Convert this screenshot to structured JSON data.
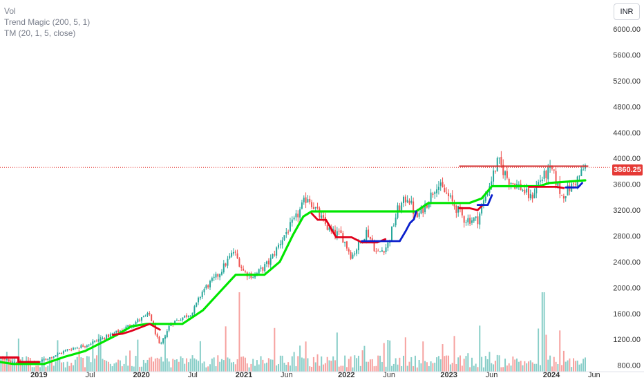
{
  "legend": [
    {
      "label": "Vol"
    },
    {
      "label": "Trend Magic (200, 5, 1)"
    },
    {
      "label": "TM (20, 1, 5, close)"
    }
  ],
  "currency": "INR",
  "last_price_label": "3860.25",
  "colors": {
    "up": "#26a69a",
    "down": "#ef5350",
    "trend_up": "#00e600",
    "trend_down": "#e0001a",
    "tm_blue": "#0a1fcc",
    "resistance": "#d32f2f",
    "price_line": "#e53935"
  },
  "chart_data": {
    "type": "candlestick",
    "y_axis": {
      "ticks": [
        800,
        1200,
        1600,
        2000,
        2400,
        2800,
        3200,
        3600,
        4000,
        4400,
        4800,
        5200,
        5600,
        6000
      ],
      "tick_labels": [
        "800.00",
        "1200.00",
        "1600.00",
        "2000.00",
        "2400.00",
        "2800.00",
        "3200.00",
        "3600.00",
        "4000.00",
        "4400.00",
        "4800.00",
        "5200.00",
        "5600.00",
        "6000.00"
      ],
      "range": [
        700,
        6450
      ]
    },
    "x_axis": {
      "labels": [
        {
          "t": 2019.0,
          "text": "2019",
          "year": true
        },
        {
          "t": 2019.5,
          "text": "Jul",
          "year": false
        },
        {
          "t": 2020.0,
          "text": "2020",
          "year": true
        },
        {
          "t": 2020.5,
          "text": "Jul",
          "year": false
        },
        {
          "t": 2021.0,
          "text": "2021",
          "year": true
        },
        {
          "t": 2021.417,
          "text": "Jun",
          "year": false
        },
        {
          "t": 2022.0,
          "text": "2022",
          "year": true
        },
        {
          "t": 2022.417,
          "text": "Jun",
          "year": false
        },
        {
          "t": 2023.0,
          "text": "2023",
          "year": true
        },
        {
          "t": 2023.417,
          "text": "Jun",
          "year": false
        },
        {
          "t": 2024.0,
          "text": "2024",
          "year": true
        },
        {
          "t": 2024.417,
          "text": "Jun",
          "year": false
        }
      ],
      "range": [
        2018.62,
        2024.58
      ]
    },
    "price_path": [
      [
        2018.62,
        900
      ],
      [
        2018.8,
        840
      ],
      [
        2019.0,
        850
      ],
      [
        2019.15,
        950
      ],
      [
        2019.3,
        1050
      ],
      [
        2019.45,
        1110
      ],
      [
        2019.6,
        1200
      ],
      [
        2019.8,
        1340
      ],
      [
        2020.0,
        1520
      ],
      [
        2020.08,
        1590
      ],
      [
        2020.18,
        1080
      ],
      [
        2020.28,
        1440
      ],
      [
        2020.5,
        1620
      ],
      [
        2020.6,
        1960
      ],
      [
        2020.75,
        2200
      ],
      [
        2020.9,
        2560
      ],
      [
        2021.0,
        2240
      ],
      [
        2021.1,
        2180
      ],
      [
        2021.25,
        2400
      ],
      [
        2021.4,
        2830
      ],
      [
        2021.5,
        3050
      ],
      [
        2021.62,
        3420
      ],
      [
        2021.75,
        3080
      ],
      [
        2021.85,
        2850
      ],
      [
        2021.95,
        2820
      ],
      [
        2022.05,
        2480
      ],
      [
        2022.2,
        2880
      ],
      [
        2022.3,
        2520
      ],
      [
        2022.4,
        2650
      ],
      [
        2022.5,
        3200
      ],
      [
        2022.6,
        3420
      ],
      [
        2022.68,
        3070
      ],
      [
        2022.8,
        3350
      ],
      [
        2022.88,
        3610
      ],
      [
        2022.98,
        3440
      ],
      [
        2023.05,
        3280
      ],
      [
        2023.15,
        3060
      ],
      [
        2023.28,
        3050
      ],
      [
        2023.38,
        3520
      ],
      [
        2023.48,
        3960
      ],
      [
        2023.58,
        3670
      ],
      [
        2023.7,
        3550
      ],
      [
        2023.8,
        3380
      ],
      [
        2023.88,
        3650
      ],
      [
        2024.0,
        3830
      ],
      [
        2024.1,
        3420
      ],
      [
        2024.2,
        3570
      ],
      [
        2024.28,
        3740
      ],
      [
        2024.33,
        3870
      ]
    ],
    "volume_spikes": [
      [
        2020.95,
        1.0
      ],
      [
        2023.92,
        1.0
      ],
      [
        2021.3,
        0.55
      ],
      [
        2023.05,
        0.45
      ],
      [
        2023.3,
        0.58
      ],
      [
        2022.4,
        0.4
      ],
      [
        2021.6,
        0.38
      ]
    ],
    "trend_magic_200": [
      {
        "color": "trend_down",
        "points": [
          [
            2018.62,
            920
          ],
          [
            2018.8,
            920
          ],
          [
            2018.8,
            850
          ],
          [
            2019.0,
            850
          ]
        ]
      },
      {
        "color": "trend_up",
        "points": [
          [
            2018.62,
            850
          ],
          [
            2018.75,
            820
          ],
          [
            2019.05,
            820
          ],
          [
            2019.25,
            930
          ],
          [
            2019.45,
            1020
          ],
          [
            2019.6,
            1140
          ],
          [
            2019.75,
            1260
          ],
          [
            2019.9,
            1400
          ],
          [
            2020.05,
            1440
          ],
          [
            2020.4,
            1440
          ],
          [
            2020.6,
            1650
          ],
          [
            2020.78,
            1960
          ],
          [
            2020.92,
            2200
          ],
          [
            2021.2,
            2200
          ],
          [
            2021.35,
            2400
          ],
          [
            2021.48,
            2820
          ],
          [
            2021.58,
            3100
          ],
          [
            2021.66,
            3180
          ],
          [
            2022.68,
            3180
          ],
          [
            2022.8,
            3310
          ],
          [
            2023.2,
            3310
          ],
          [
            2023.32,
            3380
          ],
          [
            2023.42,
            3570
          ],
          [
            2023.5,
            3570
          ],
          [
            2023.88,
            3570
          ],
          [
            2023.98,
            3620
          ],
          [
            2024.33,
            3660
          ]
        ]
      }
    ],
    "tm_20": [
      {
        "color": "trend_down",
        "points": [
          [
            2019.72,
            1270
          ],
          [
            2019.82,
            1290
          ],
          [
            2019.9,
            1330
          ],
          [
            2020.08,
            1440
          ],
          [
            2020.18,
            1350
          ]
        ]
      },
      {
        "color": "trend_down",
        "points": [
          [
            2021.66,
            3150
          ],
          [
            2021.72,
            3050
          ],
          [
            2021.8,
            3050
          ],
          [
            2021.9,
            2780
          ],
          [
            2022.05,
            2780
          ],
          [
            2022.15,
            2700
          ],
          [
            2022.3,
            2700
          ],
          [
            2022.38,
            2750
          ]
        ]
      },
      {
        "color": "tm_blue",
        "points": [
          [
            2022.15,
            2720
          ],
          [
            2022.52,
            2720
          ],
          [
            2022.58,
            2880
          ],
          [
            2022.62,
            3000
          ],
          [
            2022.66,
            3060
          ],
          [
            2022.68,
            3180
          ]
        ]
      },
      {
        "color": "trend_down",
        "points": [
          [
            2023.1,
            3230
          ],
          [
            2023.2,
            3230
          ],
          [
            2023.28,
            3200
          ],
          [
            2023.33,
            3280
          ]
        ]
      },
      {
        "color": "tm_blue",
        "points": [
          [
            2023.28,
            3280
          ],
          [
            2023.38,
            3280
          ],
          [
            2023.42,
            3430
          ]
        ]
      },
      {
        "color": "trend_down",
        "points": [
          [
            2023.78,
            3560
          ],
          [
            2023.9,
            3560
          ],
          [
            2024.05,
            3560
          ],
          [
            2024.12,
            3540
          ]
        ]
      },
      {
        "color": "tm_blue",
        "points": [
          [
            2024.14,
            3550
          ],
          [
            2024.26,
            3550
          ],
          [
            2024.3,
            3620
          ]
        ]
      }
    ],
    "resistance_line": {
      "value": 3880,
      "t_start": 2023.1,
      "t_end": 2024.36
    },
    "last_price": 3860.25
  }
}
